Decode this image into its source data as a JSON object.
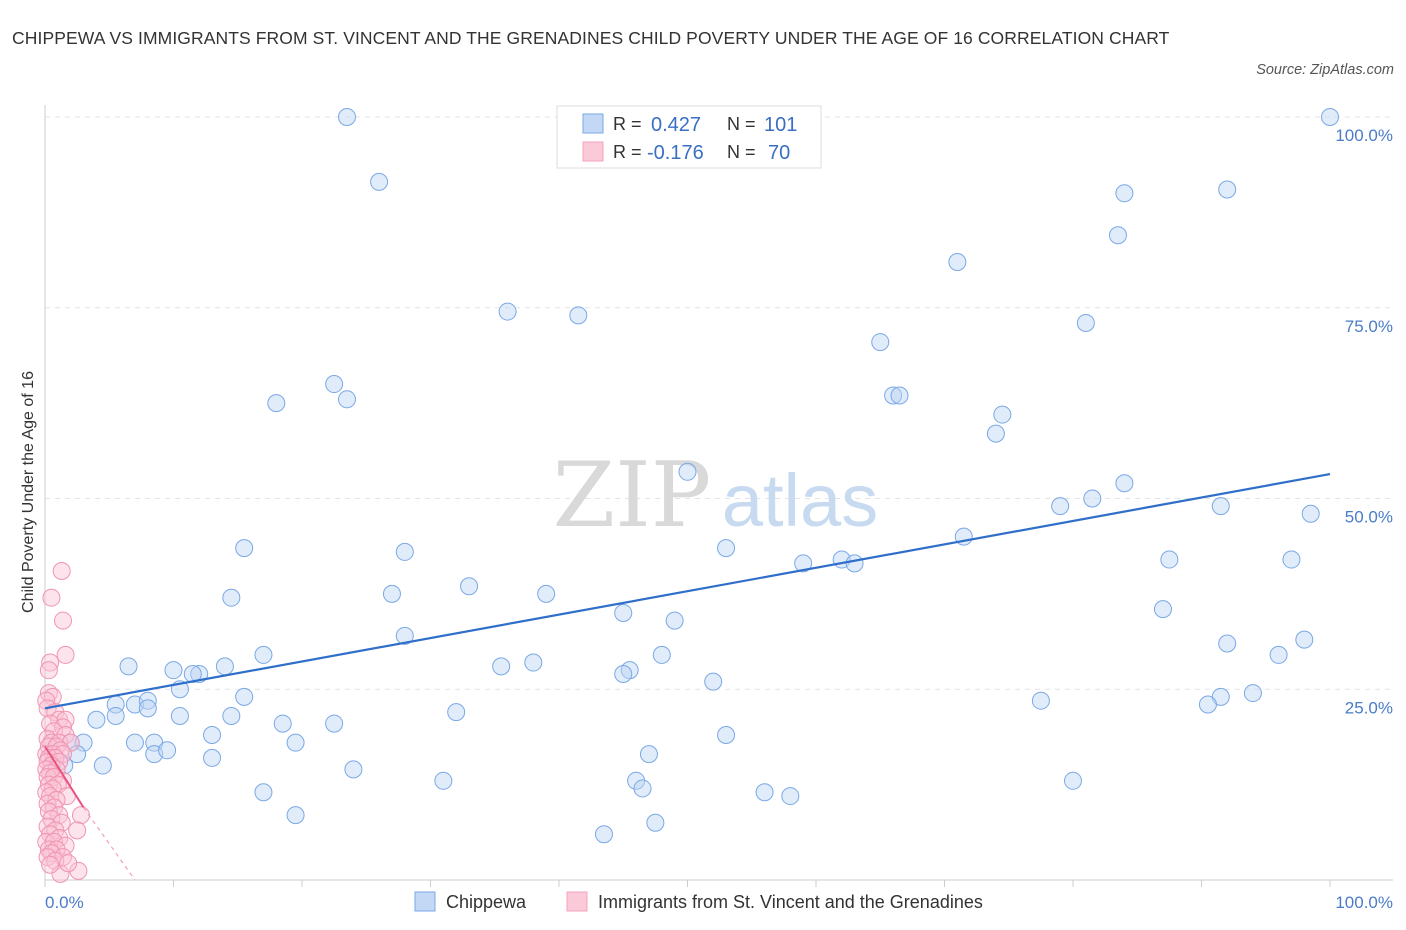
{
  "title": "CHIPPEWA VS IMMIGRANTS FROM ST. VINCENT AND THE GRENADINES CHILD POVERTY UNDER THE AGE OF 16 CORRELATION CHART",
  "source": "Source: ZipAtlas.com",
  "watermark": {
    "zip": "ZIP",
    "atlas": "atlas"
  },
  "legend": {
    "r_label": "R =",
    "n_label": "N =",
    "rows": [
      {
        "r": "0.427",
        "n": "101"
      },
      {
        "r": "-0.176",
        "n": "70"
      }
    ]
  },
  "chart_data": {
    "type": "scatter",
    "title": "CHIPPEWA VS IMMIGRANTS FROM ST. VINCENT AND THE GRENADINES CHILD POVERTY UNDER THE AGE OF 16 CORRELATION CHART",
    "xlabel": "",
    "ylabel": "Child Poverty Under the Age of 16",
    "xlim": [
      0,
      100
    ],
    "ylim": [
      0,
      100
    ],
    "x_tick_labels": [
      "0.0%",
      "100.0%"
    ],
    "y_ticks": [
      25,
      50,
      75,
      100
    ],
    "y_tick_labels": [
      "25.0%",
      "50.0%",
      "75.0%",
      "100.0%"
    ],
    "grid": true,
    "legend_position": "top-center",
    "series": [
      {
        "name": "Chippewa",
        "color": "#7aa8e6",
        "line_color": "#2f6fc9",
        "r": 0.427,
        "n": 101,
        "trend": {
          "x0": 0,
          "y0": 22.5,
          "x1": 100,
          "y1": 53.2
        },
        "points": [
          [
            23.5,
            100
          ],
          [
            26,
            91.5
          ],
          [
            84,
            90
          ],
          [
            92,
            90.5
          ],
          [
            100,
            100
          ],
          [
            83.5,
            84.5
          ],
          [
            71,
            81
          ],
          [
            36,
            74.5
          ],
          [
            41.5,
            74
          ],
          [
            81,
            73
          ],
          [
            65,
            70.5
          ],
          [
            22.5,
            65
          ],
          [
            18,
            62.5
          ],
          [
            23.5,
            63
          ],
          [
            66,
            63.5
          ],
          [
            66.5,
            63.5
          ],
          [
            74.5,
            61
          ],
          [
            74,
            58.5
          ],
          [
            50,
            53.5
          ],
          [
            81.5,
            50
          ],
          [
            79,
            49
          ],
          [
            84,
            52
          ],
          [
            91.5,
            49
          ],
          [
            98.5,
            48
          ],
          [
            71.5,
            45
          ],
          [
            53,
            43.5
          ],
          [
            15.5,
            43.5
          ],
          [
            28,
            43
          ],
          [
            59,
            41.5
          ],
          [
            62,
            42
          ],
          [
            63,
            41.5
          ],
          [
            87.5,
            42
          ],
          [
            97,
            42
          ],
          [
            14.5,
            37
          ],
          [
            27,
            37.5
          ],
          [
            33,
            38.5
          ],
          [
            39,
            37.5
          ],
          [
            87,
            35.5
          ],
          [
            45,
            35
          ],
          [
            49,
            34
          ],
          [
            28,
            32
          ],
          [
            92,
            31
          ],
          [
            96,
            29.5
          ],
          [
            98,
            31.5
          ],
          [
            17,
            29.5
          ],
          [
            48,
            29.5
          ],
          [
            38,
            28.5
          ],
          [
            45.5,
            27.5
          ],
          [
            35.5,
            28
          ],
          [
            6.5,
            28
          ],
          [
            10,
            27.5
          ],
          [
            12,
            27
          ],
          [
            14,
            28
          ],
          [
            11.5,
            27
          ],
          [
            45,
            27
          ],
          [
            52,
            26
          ],
          [
            10.5,
            25
          ],
          [
            77.5,
            23.5
          ],
          [
            15.5,
            24
          ],
          [
            91.5,
            24
          ],
          [
            90.5,
            23
          ],
          [
            94,
            24.5
          ],
          [
            5.5,
            23
          ],
          [
            7,
            23
          ],
          [
            8,
            23.5
          ],
          [
            4,
            21
          ],
          [
            5.5,
            21.5
          ],
          [
            8,
            22.5
          ],
          [
            10.5,
            21.5
          ],
          [
            14.5,
            21.5
          ],
          [
            18.5,
            20.5
          ],
          [
            22.5,
            20.5
          ],
          [
            32,
            22
          ],
          [
            13,
            19
          ],
          [
            53,
            19
          ],
          [
            0.5,
            18
          ],
          [
            2,
            18
          ],
          [
            3,
            18
          ],
          [
            7,
            18
          ],
          [
            8.5,
            18
          ],
          [
            19.5,
            18
          ],
          [
            8.5,
            16.5
          ],
          [
            9.5,
            17
          ],
          [
            13,
            16
          ],
          [
            2.5,
            16.5
          ],
          [
            47,
            16.5
          ],
          [
            1.5,
            15
          ],
          [
            4.5,
            15
          ],
          [
            24,
            14.5
          ],
          [
            31,
            13
          ],
          [
            46,
            13
          ],
          [
            46.5,
            12
          ],
          [
            56,
            11.5
          ],
          [
            58,
            11
          ],
          [
            17,
            11.5
          ],
          [
            80,
            13
          ],
          [
            19.5,
            8.5
          ],
          [
            47.5,
            7.5
          ],
          [
            43.5,
            6
          ]
        ]
      },
      {
        "name": "Immigrants from St. Vincent and the Grenadines",
        "color": "#f3a2bd",
        "line_color": "#e8527e",
        "r": -0.176,
        "n": 70,
        "trend": {
          "x0": 0,
          "y0": 17.5,
          "x1": 3,
          "y1": 9.5,
          "dashed_to_x": 7,
          "dashed_to_y": 0
        },
        "points": [
          [
            1.3,
            40.5
          ],
          [
            0.5,
            37
          ],
          [
            1.4,
            34
          ],
          [
            1.6,
            29.5
          ],
          [
            0.4,
            28.5
          ],
          [
            0.3,
            27.5
          ],
          [
            0.3,
            24.5
          ],
          [
            0.6,
            24
          ],
          [
            0.1,
            23.5
          ],
          [
            0.2,
            22.5
          ],
          [
            0.8,
            22
          ],
          [
            1.1,
            21
          ],
          [
            1.6,
            21
          ],
          [
            0.4,
            20.5
          ],
          [
            1.4,
            20
          ],
          [
            0.7,
            19.5
          ],
          [
            1.6,
            19
          ],
          [
            0.2,
            18.5
          ],
          [
            0.5,
            18
          ],
          [
            1.1,
            18
          ],
          [
            2.0,
            18
          ],
          [
            0.3,
            17.5
          ],
          [
            0.9,
            17.5
          ],
          [
            1.2,
            17
          ],
          [
            0.1,
            16.5
          ],
          [
            0.6,
            16.5
          ],
          [
            1.4,
            16.5
          ],
          [
            0.3,
            16
          ],
          [
            0.8,
            16
          ],
          [
            0.2,
            15.5
          ],
          [
            1.1,
            15.5
          ],
          [
            0.5,
            15
          ],
          [
            0.1,
            14.5
          ],
          [
            0.9,
            14.5
          ],
          [
            0.4,
            14
          ],
          [
            0.2,
            13.5
          ],
          [
            0.7,
            13.5
          ],
          [
            1.4,
            13
          ],
          [
            0.3,
            12.5
          ],
          [
            1.0,
            12.5
          ],
          [
            0.6,
            12
          ],
          [
            0.1,
            11.5
          ],
          [
            1.7,
            11
          ],
          [
            0.4,
            11
          ],
          [
            0.9,
            10.5
          ],
          [
            0.2,
            10
          ],
          [
            0.7,
            9.5
          ],
          [
            0.3,
            9
          ],
          [
            1.1,
            8.5
          ],
          [
            0.5,
            8
          ],
          [
            2.8,
            8.5
          ],
          [
            1.3,
            7.5
          ],
          [
            0.2,
            7
          ],
          [
            0.8,
            6.5
          ],
          [
            2.5,
            6.5
          ],
          [
            0.4,
            6
          ],
          [
            1.1,
            5.5
          ],
          [
            0.1,
            5
          ],
          [
            0.7,
            5
          ],
          [
            1.6,
            4.5
          ],
          [
            0.3,
            4
          ],
          [
            0.9,
            4
          ],
          [
            0.5,
            3.5
          ],
          [
            1.4,
            3
          ],
          [
            0.2,
            3
          ],
          [
            0.8,
            2.5
          ],
          [
            2.6,
            1.2
          ],
          [
            1.2,
            0.8
          ],
          [
            0.4,
            2
          ],
          [
            1.8,
            2.2
          ]
        ]
      }
    ]
  }
}
